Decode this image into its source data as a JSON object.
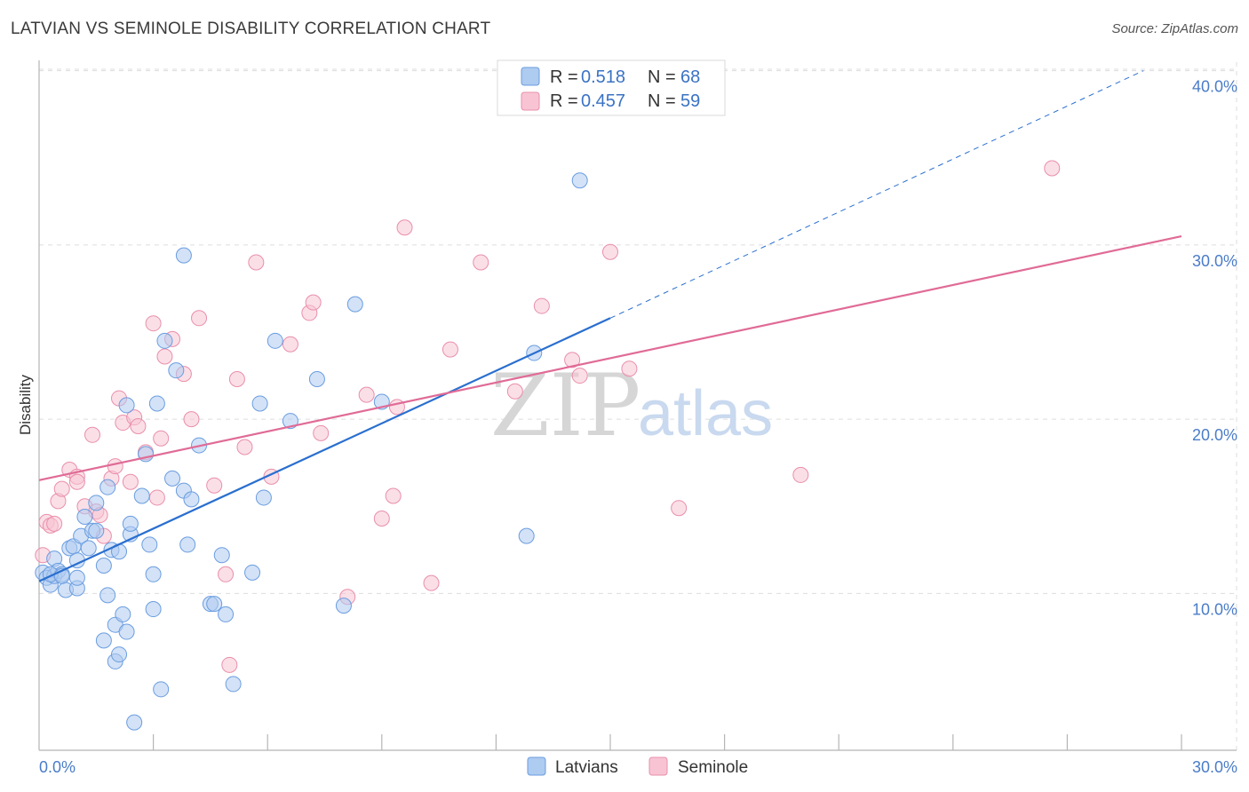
{
  "title": "LATVIAN VS SEMINOLE DISABILITY CORRELATION CHART",
  "source": "Source: ZipAtlas.com",
  "watermark": {
    "zip": "ZIP",
    "atlas": "atlas"
  },
  "colors": {
    "latvians_fill": "#aecbf0",
    "latvians_stroke": "#6a9de0",
    "latvians_line": "#2a6fcf",
    "seminole_fill": "#f8c4d4",
    "seminole_stroke": "#e98fab",
    "seminole_line": "#e06b96",
    "tick": "#4a7cc8",
    "grid": "#dddddd"
  },
  "legend": {
    "r_label": "R =",
    "n_label": "N =",
    "latvians": {
      "r": "0.518",
      "n": "68"
    },
    "seminole": {
      "r": "0.457",
      "n": "59"
    }
  },
  "chart_data": {
    "type": "scatter",
    "title": "LATVIAN VS SEMINOLE DISABILITY CORRELATION CHART",
    "xlabel": "",
    "ylabel": "Disability",
    "xlim": [
      0,
      30
    ],
    "ylim": [
      1,
      41
    ],
    "x_ticks": [
      "0.0%",
      "30.0%"
    ],
    "y_ticks": [
      {
        "value": 10,
        "label": "10.0%"
      },
      {
        "value": 20,
        "label": "20.0%"
      },
      {
        "value": 30,
        "label": "30.0%"
      },
      {
        "value": 40,
        "label": "40.0%"
      }
    ],
    "grid": true,
    "legend_position": "top-center",
    "series": [
      {
        "name": "Latvians",
        "points": [
          [
            0.1,
            11.2
          ],
          [
            0.2,
            10.9
          ],
          [
            0.3,
            10.5
          ],
          [
            0.4,
            11.0
          ],
          [
            0.4,
            12.0
          ],
          [
            0.5,
            11.3
          ],
          [
            0.6,
            11.1
          ],
          [
            0.7,
            10.2
          ],
          [
            0.8,
            12.6
          ],
          [
            0.9,
            12.7
          ],
          [
            1.0,
            10.3
          ],
          [
            1.0,
            10.9
          ],
          [
            1.1,
            13.3
          ],
          [
            1.2,
            14.4
          ],
          [
            1.3,
            12.6
          ],
          [
            1.4,
            13.6
          ],
          [
            1.5,
            13.6
          ],
          [
            1.5,
            15.2
          ],
          [
            1.7,
            11.6
          ],
          [
            1.8,
            9.9
          ],
          [
            1.8,
            16.1
          ],
          [
            1.9,
            12.5
          ],
          [
            2.0,
            6.1
          ],
          [
            1.7,
            7.3
          ],
          [
            2.0,
            8.2
          ],
          [
            2.1,
            6.5
          ],
          [
            2.1,
            12.4
          ],
          [
            2.2,
            8.8
          ],
          [
            2.3,
            7.8
          ],
          [
            2.4,
            13.4
          ],
          [
            2.4,
            14.0
          ],
          [
            2.5,
            2.6
          ],
          [
            2.7,
            15.6
          ],
          [
            2.8,
            18.0
          ],
          [
            2.9,
            12.8
          ],
          [
            3.0,
            11.1
          ],
          [
            3.1,
            20.9
          ],
          [
            3.2,
            4.5
          ],
          [
            3.0,
            9.1
          ],
          [
            3.3,
            24.5
          ],
          [
            3.5,
            16.6
          ],
          [
            3.6,
            22.8
          ],
          [
            3.8,
            15.9
          ],
          [
            3.9,
            12.8
          ],
          [
            4.0,
            15.4
          ],
          [
            4.2,
            18.5
          ],
          [
            4.5,
            9.4
          ],
          [
            4.6,
            9.4
          ],
          [
            4.8,
            12.2
          ],
          [
            4.9,
            8.8
          ],
          [
            5.1,
            4.8
          ],
          [
            5.6,
            11.2
          ],
          [
            5.8,
            20.9
          ],
          [
            5.9,
            15.5
          ],
          [
            6.2,
            24.5
          ],
          [
            6.6,
            19.9
          ],
          [
            7.3,
            22.3
          ],
          [
            8.0,
            9.3
          ],
          [
            8.3,
            26.6
          ],
          [
            9.0,
            21.0
          ],
          [
            3.8,
            29.4
          ],
          [
            13.0,
            23.8
          ],
          [
            12.8,
            13.3
          ],
          [
            14.2,
            33.7
          ],
          [
            0.3,
            11.1
          ],
          [
            0.6,
            11.0
          ],
          [
            1.0,
            11.9
          ],
          [
            2.3,
            20.8
          ]
        ]
      },
      {
        "name": "Seminole",
        "points": [
          [
            0.1,
            12.2
          ],
          [
            0.2,
            14.1
          ],
          [
            0.3,
            13.9
          ],
          [
            0.5,
            15.3
          ],
          [
            0.6,
            16.0
          ],
          [
            0.8,
            17.1
          ],
          [
            1.0,
            16.7
          ],
          [
            1.2,
            15.0
          ],
          [
            1.4,
            19.1
          ],
          [
            1.5,
            14.7
          ],
          [
            1.6,
            14.5
          ],
          [
            1.7,
            13.3
          ],
          [
            1.9,
            16.6
          ],
          [
            2.0,
            17.3
          ],
          [
            2.1,
            21.2
          ],
          [
            2.2,
            19.8
          ],
          [
            2.4,
            16.4
          ],
          [
            2.5,
            20.1
          ],
          [
            2.6,
            19.6
          ],
          [
            2.8,
            18.1
          ],
          [
            3.0,
            25.5
          ],
          [
            3.1,
            15.5
          ],
          [
            3.2,
            18.9
          ],
          [
            3.3,
            23.6
          ],
          [
            3.5,
            24.6
          ],
          [
            3.8,
            22.6
          ],
          [
            4.0,
            20.0
          ],
          [
            4.2,
            25.8
          ],
          [
            4.6,
            16.2
          ],
          [
            4.9,
            11.1
          ],
          [
            5.0,
            5.9
          ],
          [
            5.2,
            22.3
          ],
          [
            5.4,
            18.4
          ],
          [
            5.7,
            29.0
          ],
          [
            6.1,
            16.7
          ],
          [
            6.6,
            24.3
          ],
          [
            7.1,
            26.1
          ],
          [
            7.2,
            26.7
          ],
          [
            7.4,
            19.2
          ],
          [
            8.1,
            9.8
          ],
          [
            8.6,
            21.4
          ],
          [
            9.0,
            14.3
          ],
          [
            9.3,
            15.6
          ],
          [
            9.4,
            20.7
          ],
          [
            9.6,
            31.0
          ],
          [
            10.3,
            10.6
          ],
          [
            10.8,
            24.0
          ],
          [
            11.6,
            29.0
          ],
          [
            12.5,
            21.6
          ],
          [
            13.2,
            26.5
          ],
          [
            14.0,
            23.4
          ],
          [
            14.2,
            22.5
          ],
          [
            15.0,
            29.6
          ],
          [
            15.5,
            22.9
          ],
          [
            16.8,
            14.9
          ],
          [
            20.0,
            16.8
          ],
          [
            26.6,
            34.4
          ],
          [
            0.4,
            14.0
          ],
          [
            1.0,
            16.4
          ]
        ]
      }
    ],
    "trendlines": [
      {
        "series": "Latvians",
        "solid": [
          [
            0.0,
            10.7
          ],
          [
            15.0,
            25.8
          ]
        ],
        "dashed": [
          [
            15.0,
            25.8
          ],
          [
            29.0,
            40.0
          ]
        ]
      },
      {
        "series": "Seminole",
        "solid": [
          [
            0.0,
            16.5
          ],
          [
            30.0,
            30.5
          ]
        ]
      }
    ]
  }
}
